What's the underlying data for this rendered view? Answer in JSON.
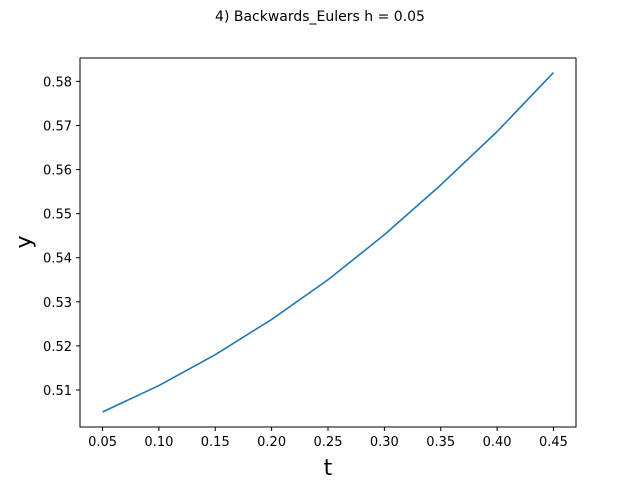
{
  "chart_data": {
    "type": "line",
    "title": "4) Backwards_Eulers h = 0.05",
    "xlabel": "t",
    "ylabel": "y",
    "xlim": [
      0.03,
      0.47
    ],
    "ylim": [
      0.5016,
      0.5853
    ],
    "xticks": [
      "0.05",
      "0.10",
      "0.15",
      "0.20",
      "0.25",
      "0.30",
      "0.35",
      "0.40",
      "0.45"
    ],
    "yticks": [
      "0.51",
      "0.52",
      "0.53",
      "0.54",
      "0.55",
      "0.56",
      "0.57",
      "0.58"
    ],
    "grid": false,
    "line_color": "#1f77b4",
    "series": [
      {
        "x": [
          0.05,
          0.1,
          0.15,
          0.2,
          0.25,
          0.3,
          0.35,
          0.4,
          0.45
        ],
        "y": [
          0.505,
          0.511,
          0.518,
          0.526,
          0.535,
          0.5452,
          0.5565,
          0.5686,
          0.582
        ]
      }
    ]
  }
}
